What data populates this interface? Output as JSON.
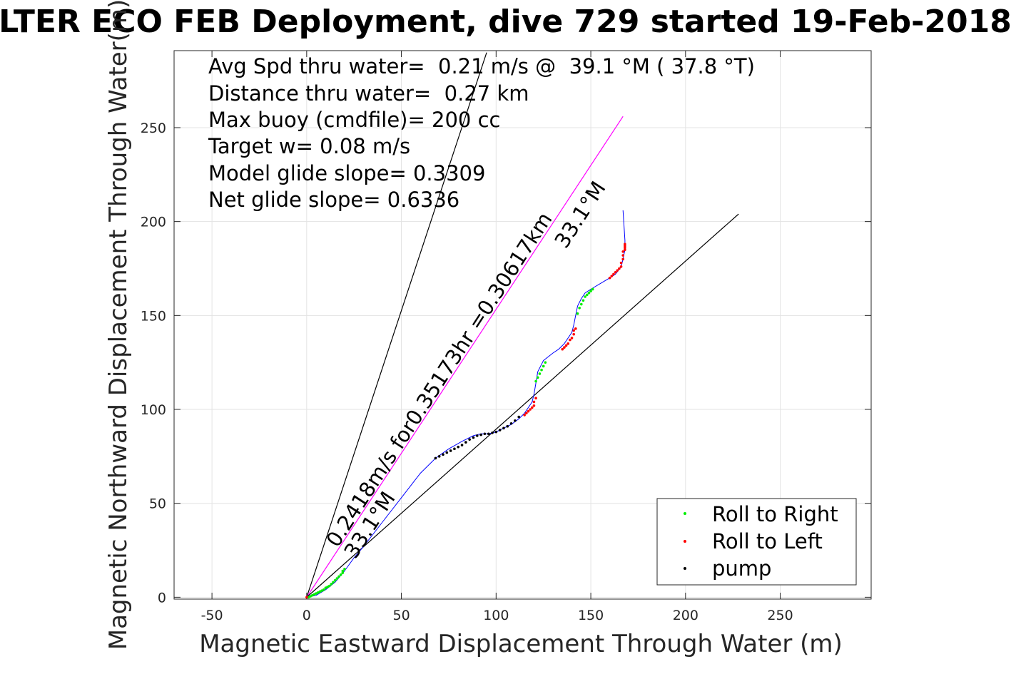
{
  "chart_data": {
    "type": "scatter",
    "title": "LTER ECO FEB Deployment, dive 729 started 19-Feb-2018",
    "xlabel": "Magnetic Eastward Displacement Through Water (m)",
    "ylabel": "Magnetic Northward Displacement Through Water(m)",
    "xlim": [
      -70,
      298
    ],
    "ylim": [
      -1,
      291
    ],
    "x_ticks": [
      -50,
      0,
      50,
      100,
      150,
      200,
      250
    ],
    "y_ticks": [
      0,
      50,
      100,
      150,
      200,
      250
    ],
    "grid": true,
    "legend_position": "bottom-right",
    "annotations": [
      "Avg Spd thru water=  0.21 m/s @  39.1 °M ( 37.8 °T)",
      "Distance thru water=  0.27 km",
      "Max buoy (cmdfile)= 200 cc",
      "Target w= 0.08 m/s",
      "Model glide slope= 0.3309",
      "Net glide slope= 0.6336"
    ],
    "line_labels": {
      "course_text": "0.2418m/s for0.35173hr =0.30617km",
      "heading_upper": "33.1°M",
      "heading_lower": "33.1°M"
    },
    "reference_lines": [
      {
        "name": "steep",
        "color": "#000000",
        "x": [
          0,
          95
        ],
        "y": [
          0,
          290
        ]
      },
      {
        "name": "course",
        "color": "#ff00ff",
        "x": [
          0,
          167
        ],
        "y": [
          0,
          256
        ]
      },
      {
        "name": "shallow",
        "color": "#000000",
        "x": [
          0,
          228
        ],
        "y": [
          0,
          204
        ]
      }
    ],
    "track": {
      "color": "#0000ff",
      "x": [
        0,
        5,
        10,
        15,
        20,
        25,
        30,
        40,
        50,
        60,
        68,
        75,
        82,
        88,
        92,
        96,
        100,
        104,
        108,
        112,
        115,
        117,
        119,
        120,
        121,
        122,
        125,
        130,
        133,
        136,
        138,
        140,
        141,
        142,
        143,
        145,
        147,
        150,
        155,
        160,
        163,
        166,
        167,
        168,
        168,
        167
      ],
      "y": [
        0,
        1,
        4,
        8,
        14,
        21,
        27,
        40,
        53,
        66,
        74,
        79,
        83,
        86,
        87,
        87,
        88,
        90,
        92,
        95,
        98,
        101,
        104,
        108,
        114,
        120,
        126,
        130,
        132,
        135,
        138,
        141,
        145,
        150,
        155,
        159,
        162,
        164,
        167,
        170,
        172,
        176,
        180,
        185,
        190,
        206
      ]
    },
    "series": [
      {
        "name": "Roll to Right",
        "color": "#00ee00",
        "x": [
          1,
          2,
          3,
          4,
          5,
          6,
          7,
          8,
          9,
          10,
          11,
          12,
          13,
          14,
          15,
          16,
          17,
          18,
          19,
          19,
          20,
          121,
          122,
          123,
          124,
          125,
          126,
          143,
          144,
          145,
          146,
          147,
          148,
          149,
          150,
          151
        ],
        "y": [
          0,
          0.5,
          1,
          1.5,
          2,
          2.5,
          3,
          3.5,
          4,
          5,
          5.5,
          6,
          7,
          8,
          9,
          10,
          11,
          12,
          13,
          14,
          15,
          115,
          117,
          119,
          121,
          123,
          125,
          151,
          154,
          156,
          158,
          160,
          161,
          162,
          163,
          164
        ]
      },
      {
        "name": "Roll to Left",
        "color": "#ff0000",
        "x": [
          0,
          115,
          116,
          117,
          118,
          119,
          120,
          120,
          121,
          135,
          136,
          137,
          138,
          139,
          140,
          141,
          141,
          142,
          160,
          161,
          162,
          163,
          164,
          165,
          166,
          166,
          167,
          167,
          167,
          168,
          168,
          168,
          168
        ],
        "y": [
          0,
          97,
          98,
          99,
          100,
          101,
          102,
          104,
          106,
          132,
          133,
          134,
          135,
          137,
          138,
          140,
          142,
          143,
          170,
          171,
          172,
          173,
          174,
          175,
          176,
          178,
          180,
          182,
          184,
          185,
          186,
          187,
          188
        ]
      },
      {
        "name": "pump",
        "color": "#000000",
        "x": [
          68,
          70,
          72,
          74,
          76,
          78,
          80,
          82,
          84,
          86,
          88,
          90,
          92,
          94,
          96,
          98,
          100,
          102,
          104,
          106,
          108,
          110,
          112
        ],
        "y": [
          74,
          75,
          76,
          77,
          78,
          79,
          80,
          81,
          82.5,
          84,
          85,
          86,
          86.5,
          87,
          87,
          87.5,
          88,
          89,
          90,
          91,
          92.5,
          94,
          96
        ]
      }
    ]
  }
}
